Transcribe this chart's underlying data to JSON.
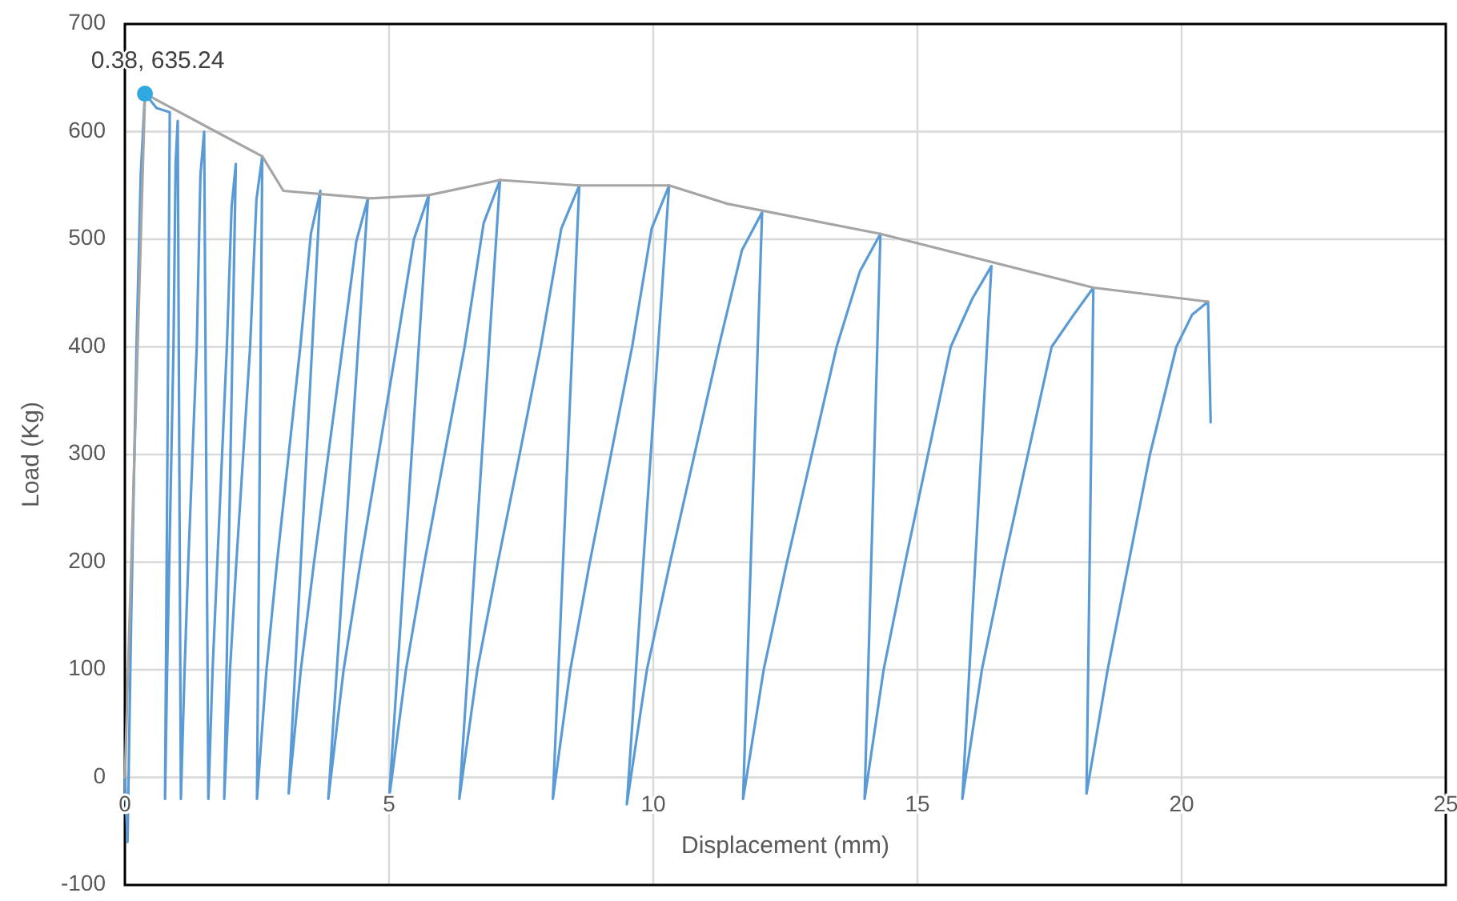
{
  "chart_data": {
    "type": "line",
    "xlabel": "Displacement (mm)",
    "ylabel": "Load (Kg)",
    "xlim": [
      0,
      25
    ],
    "ylim": [
      -100,
      700
    ],
    "xticks": [
      0,
      5,
      10,
      15,
      20,
      25
    ],
    "yticks": [
      -100,
      0,
      100,
      200,
      300,
      400,
      500,
      600,
      700
    ],
    "grid": true,
    "marker": "none",
    "line_style": "solid",
    "annotations": [
      {
        "text": "0.38, 635.24",
        "x": 0.38,
        "y": 635.24
      }
    ],
    "series": [
      {
        "color": "#5b9bd5",
        "x": [
          0,
          0.05,
          0.12,
          0.22,
          0.3,
          0.38,
          0.6,
          0.85,
          0.76,
          0.8,
          0.84,
          0.88,
          0.92,
          0.96,
          1.0,
          1.06,
          1.13,
          1.2,
          1.28,
          1.36,
          1.43,
          1.5,
          1.58,
          1.66,
          1.75,
          1.84,
          1.93,
          2.02,
          2.1,
          1.88,
          1.99,
          2.11,
          2.24,
          2.37,
          2.49,
          2.6,
          2.5,
          2.68,
          2.88,
          3.1,
          3.32,
          3.52,
          3.7,
          3.1,
          3.33,
          3.58,
          3.85,
          4.12,
          4.38,
          4.6,
          3.85,
          4.14,
          4.46,
          4.8,
          5.14,
          5.47,
          5.75,
          5.0,
          5.32,
          5.67,
          6.05,
          6.43,
          6.79,
          7.1,
          6.33,
          6.67,
          7.06,
          7.47,
          7.87,
          8.26,
          8.6,
          8.1,
          8.43,
          8.8,
          9.2,
          9.6,
          9.97,
          10.3,
          9.5,
          9.88,
          10.32,
          10.78,
          11.24,
          11.68,
          12.06,
          11.7,
          12.09,
          12.53,
          13.0,
          13.47,
          13.91,
          14.3,
          14.0,
          14.36,
          14.77,
          15.2,
          15.63,
          16.04,
          16.4,
          15.85,
          16.22,
          16.64,
          17.09,
          17.54,
          17.96,
          18.33,
          18.2,
          18.6,
          19.0,
          19.4,
          19.9,
          20.2,
          20.5,
          20.55
        ],
        "values": [
          0,
          -60,
          150,
          400,
          560,
          635.24,
          622,
          618,
          -20,
          100,
          200,
          300,
          400,
          570,
          610,
          -20,
          100,
          200,
          300,
          400,
          560,
          600,
          -20,
          100,
          200,
          300,
          400,
          530,
          570,
          -20,
          100,
          200,
          300,
          400,
          537,
          577,
          -20,
          100,
          200,
          300,
          400,
          505,
          545,
          -15,
          100,
          200,
          300,
          400,
          498,
          538,
          -20,
          100,
          200,
          300,
          400,
          500,
          541,
          -20,
          100,
          200,
          300,
          400,
          515,
          555,
          -20,
          100,
          200,
          300,
          400,
          510,
          550,
          -20,
          100,
          200,
          300,
          400,
          510,
          550,
          -25,
          100,
          200,
          300,
          400,
          490,
          525,
          -20,
          100,
          200,
          300,
          400,
          470,
          505,
          -20,
          100,
          200,
          300,
          400,
          445,
          475,
          -20,
          100,
          200,
          300,
          400,
          430,
          455,
          -15,
          100,
          200,
          300,
          400,
          430,
          442,
          330
        ]
      },
      {
        "color": "#a5a5a5",
        "x": [
          0,
          0.2,
          0.38,
          2.6,
          3.0,
          4.65,
          5.75,
          7.1,
          8.6,
          10.3,
          11.4,
          14.3,
          18.33,
          20.5
        ],
        "values": [
          0,
          330,
          635.24,
          577,
          545,
          538,
          541,
          555,
          550,
          550,
          533,
          505,
          455,
          442
        ]
      },
      {
        "type": "scatter",
        "marker": "circle",
        "color": "#2fa9e0",
        "x": [
          0.38
        ],
        "values": [
          635.24
        ]
      }
    ]
  }
}
